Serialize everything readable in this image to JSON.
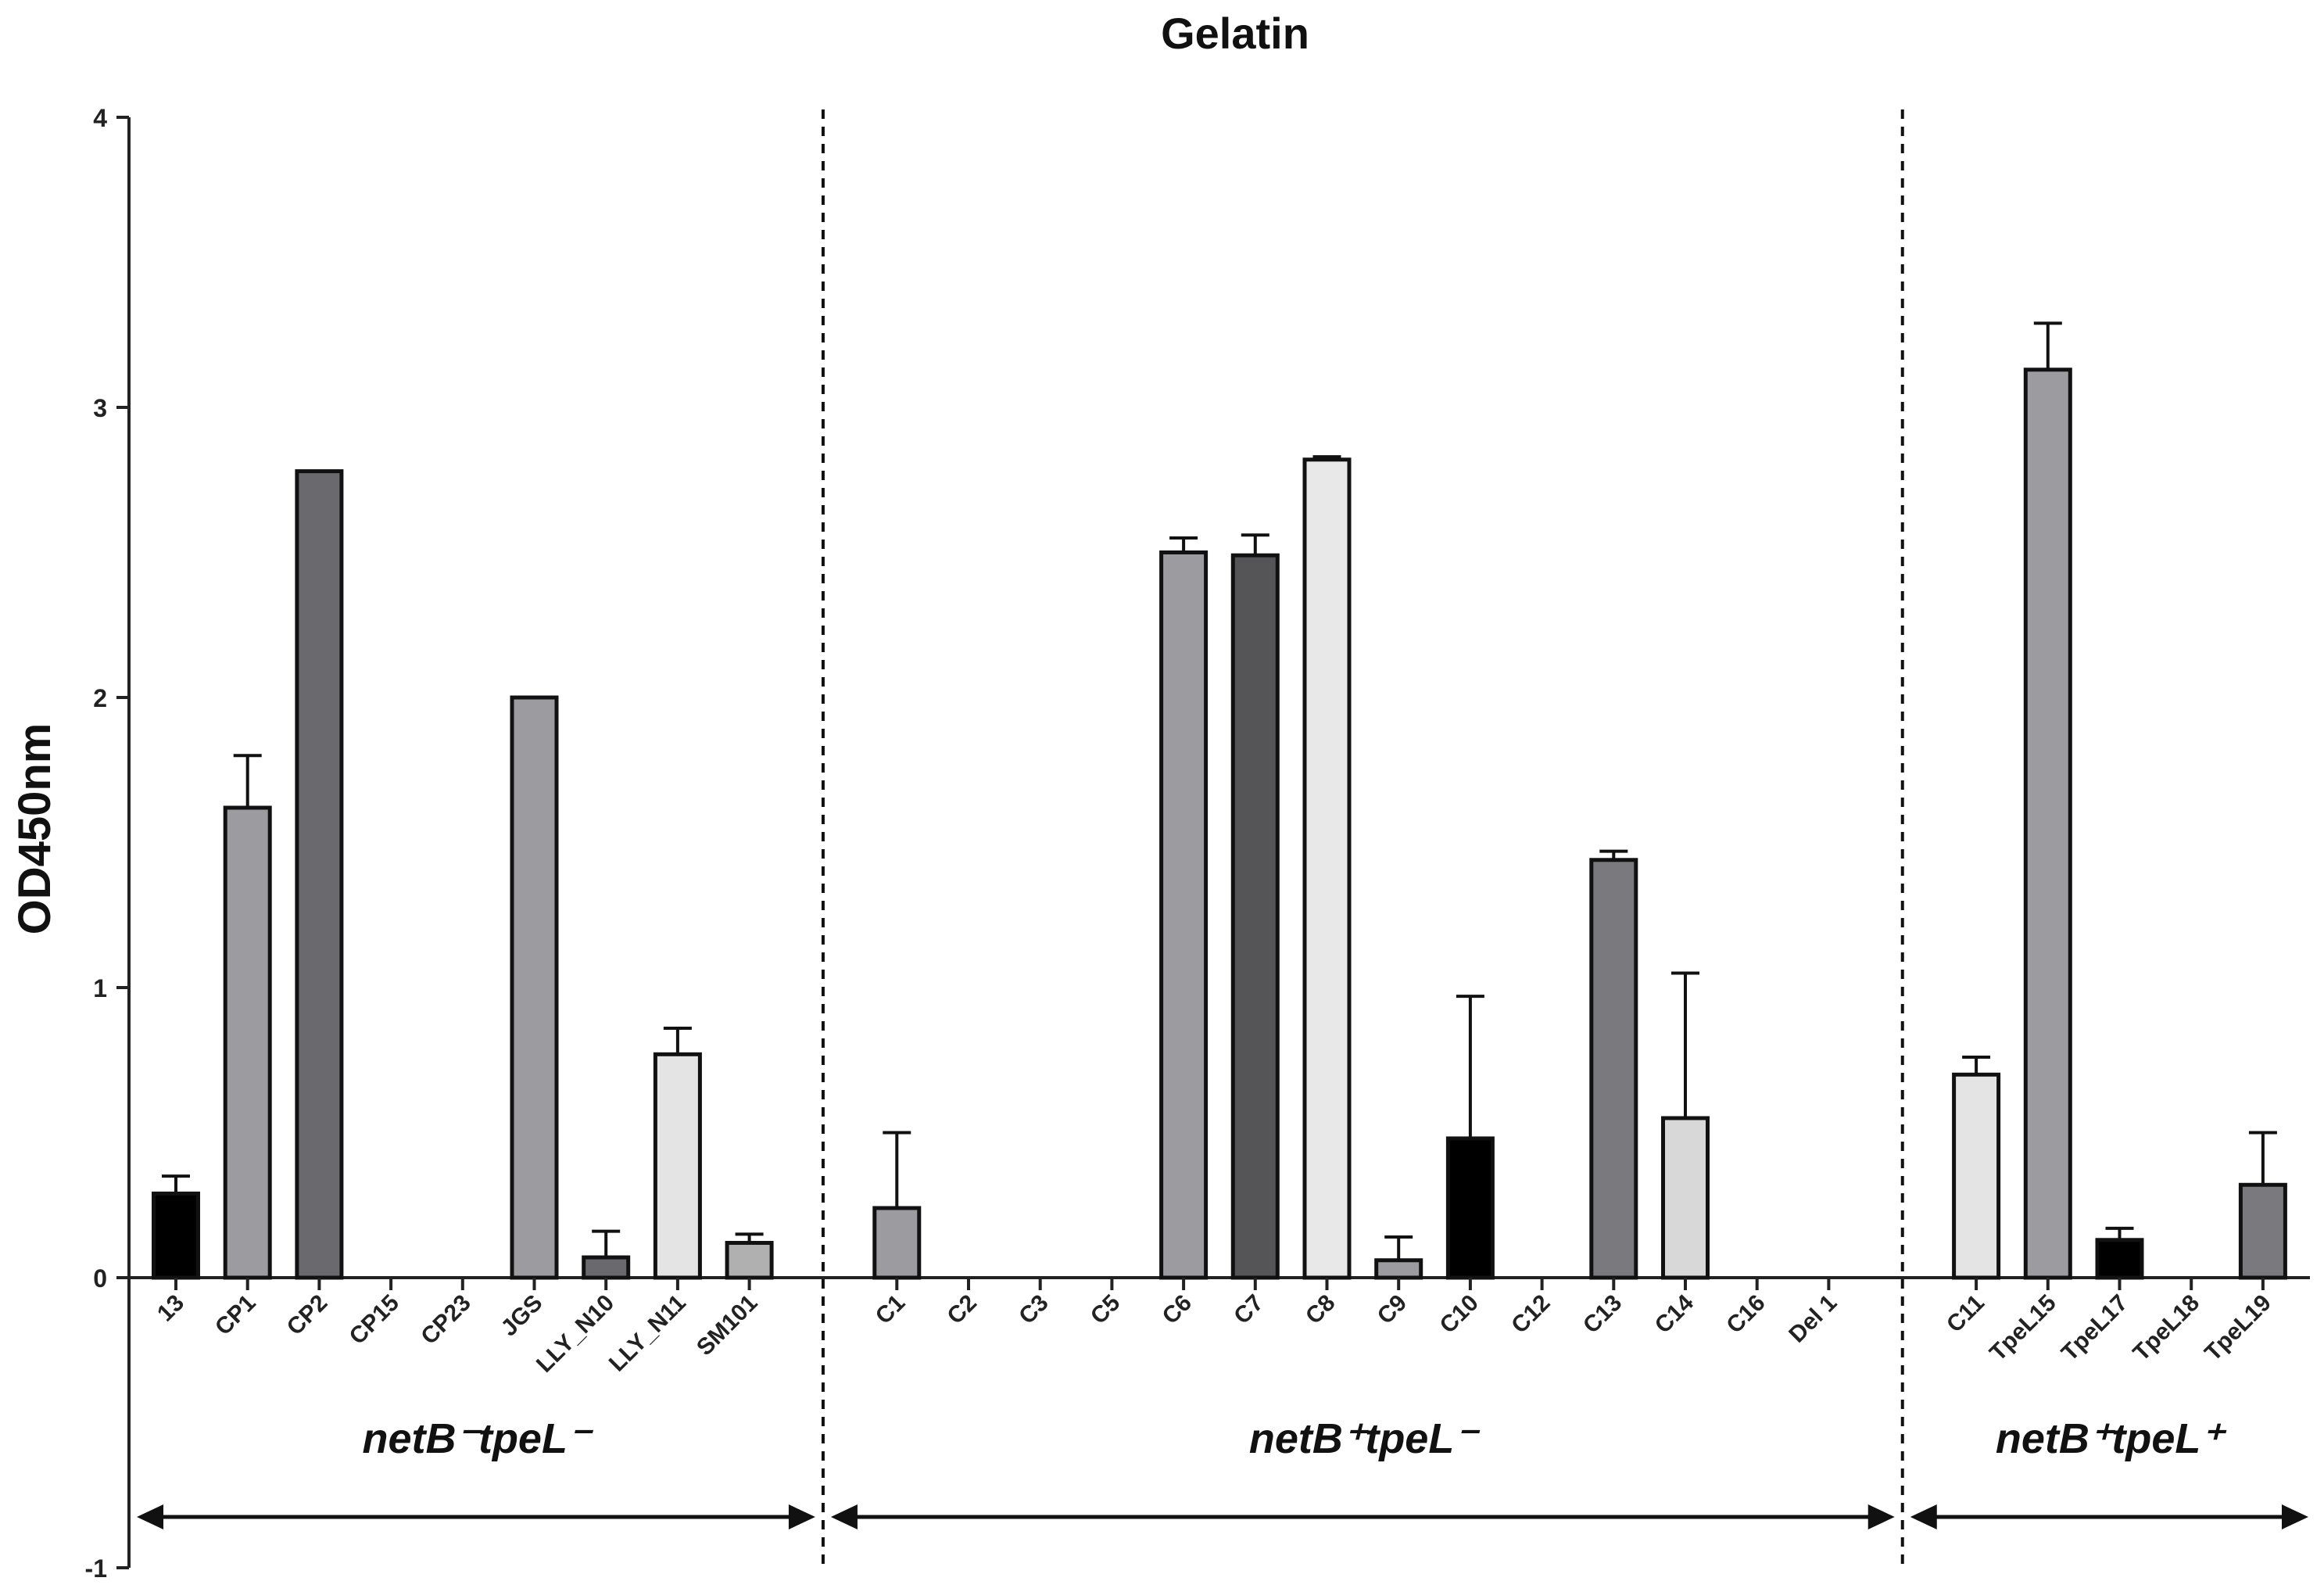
{
  "chart_data": {
    "type": "bar",
    "title": "Gelatin",
    "xlabel": "",
    "ylabel": "OD450nm",
    "ylim": [
      -1,
      4
    ],
    "yticks": [
      -1,
      0,
      1,
      2,
      3,
      4
    ],
    "grid": false,
    "legend": "none",
    "categories": [
      "13",
      "CP1",
      "CP2",
      "CP15",
      "CP23",
      "JGS",
      "LLY_N10",
      "LLY_N11",
      "SM101",
      "C1",
      "C2",
      "C3",
      "C5",
      "C6",
      "C7",
      "C8",
      "C9",
      "C10",
      "C12",
      "C13",
      "C14",
      "C16",
      "Del 1",
      "C11",
      "TpeL15",
      "TpeL17",
      "TpeL18",
      "TpeL19"
    ],
    "values": [
      0.29,
      1.62,
      2.78,
      0,
      0,
      2.0,
      0.07,
      0.77,
      0.12,
      0.24,
      0,
      0,
      0,
      2.5,
      2.49,
      2.82,
      0.06,
      0.48,
      0,
      1.44,
      0.55,
      0,
      0,
      0.7,
      3.13,
      0.13,
      0,
      0.32
    ],
    "errors": [
      0.06,
      0.18,
      0.0,
      0,
      0,
      0.0,
      0.09,
      0.09,
      0.03,
      0.26,
      0,
      0,
      0,
      0.05,
      0.07,
      0.01,
      0.08,
      0.49,
      0,
      0.03,
      0.5,
      0,
      0,
      0.06,
      0.16,
      0.04,
      0,
      0.18
    ],
    "bar_colors": [
      "#000000",
      "#9b9ba0",
      "#6a6a6e",
      "#9b9ba0",
      "#9b9ba0",
      "#9b9ba0",
      "#6a6a6e",
      "#e4e4e4",
      "#b0b0b0",
      "#9b9ba0",
      "#9b9ba0",
      "#9b9ba0",
      "#9b9ba0",
      "#9b9ba0",
      "#555557",
      "#e8e8e8",
      "#9b9ba0",
      "#000000",
      "#9b9ba0",
      "#7a7a7e",
      "#d8d8d8",
      "#9b9ba0",
      "#9b9ba0",
      "#e4e4e4",
      "#9b9ba0",
      "#000000",
      "#9b9ba0",
      "#7a7a7e"
    ],
    "groups": [
      {
        "label": "netB⁻tpeL⁻",
        "count": 9
      },
      {
        "label": "netB⁺tpeL⁻",
        "count": 14
      },
      {
        "label": "netB⁺tpeL⁺",
        "count": 5
      }
    ]
  }
}
